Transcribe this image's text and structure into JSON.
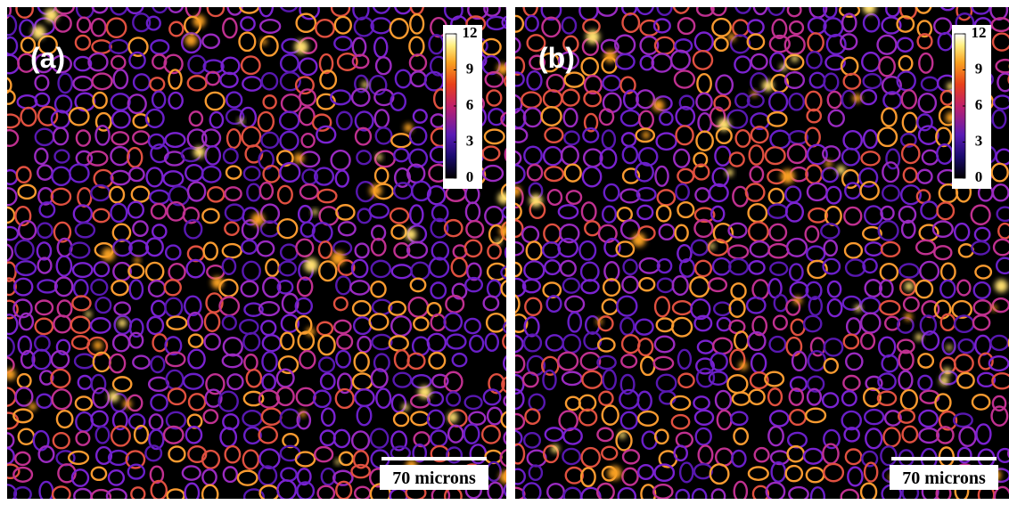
{
  "panels": [
    {
      "label": "(a)",
      "colorbar": {
        "range": [
          0,
          12
        ],
        "ticks": [
          0,
          3,
          6,
          9,
          12
        ]
      },
      "scale_bar": "70 microns"
    },
    {
      "label": "(b)",
      "colorbar": {
        "range": [
          0,
          12
        ],
        "ticks": [
          0,
          3,
          6,
          9,
          12
        ]
      },
      "scale_bar": "70 microns"
    }
  ]
}
